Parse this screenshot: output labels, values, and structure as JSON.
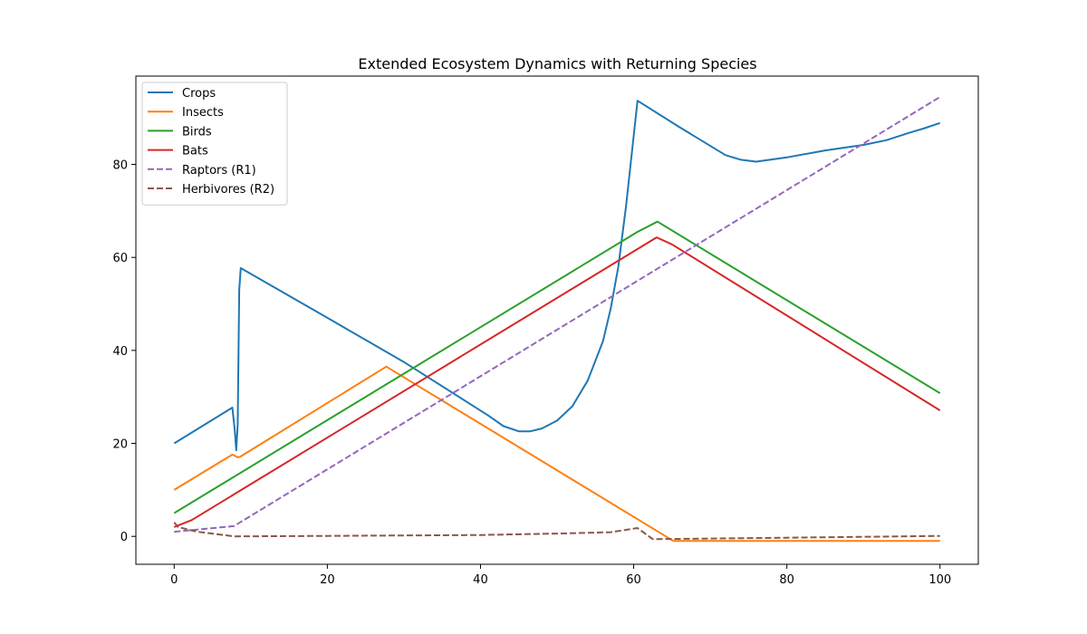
{
  "chart_data": {
    "type": "line",
    "title": "Extended Ecosystem Dynamics with Returning Species",
    "xlabel": "",
    "ylabel": "",
    "xlim": [
      -5,
      105
    ],
    "ylim": [
      -6,
      99
    ],
    "xticks": [
      0,
      20,
      40,
      60,
      80,
      100
    ],
    "yticks": [
      0,
      20,
      40,
      60,
      80
    ],
    "grid": false,
    "legend_position": "top-left",
    "series": [
      {
        "name": "Crops",
        "color": "#1f77b4",
        "dash": "solid",
        "points": [
          [
            0,
            20
          ],
          [
            7.6,
            27.7
          ],
          [
            7.9,
            23
          ],
          [
            8.1,
            18.5
          ],
          [
            8.3,
            24
          ],
          [
            8.5,
            53
          ],
          [
            8.7,
            57.7
          ],
          [
            20,
            47
          ],
          [
            30,
            37.5
          ],
          [
            41,
            26
          ],
          [
            43,
            23.7
          ],
          [
            45,
            22.6
          ],
          [
            46.5,
            22.6
          ],
          [
            48,
            23.2
          ],
          [
            50,
            24.9
          ],
          [
            52,
            28
          ],
          [
            54,
            33.5
          ],
          [
            56,
            42
          ],
          [
            57,
            49
          ],
          [
            58,
            58
          ],
          [
            59,
            71
          ],
          [
            60,
            86
          ],
          [
            60.5,
            93.7
          ],
          [
            66,
            88
          ],
          [
            72,
            82
          ],
          [
            74,
            81
          ],
          [
            76,
            80.6
          ],
          [
            80,
            81.5
          ],
          [
            85,
            83
          ],
          [
            90,
            84.2
          ],
          [
            93,
            85.2
          ],
          [
            96,
            86.8
          ],
          [
            98,
            87.8
          ],
          [
            100,
            88.9
          ]
        ]
      },
      {
        "name": "Insects",
        "color": "#ff7f0e",
        "dash": "solid",
        "points": [
          [
            0,
            10
          ],
          [
            7.6,
            17.6
          ],
          [
            8.3,
            17
          ],
          [
            8.6,
            17.1
          ],
          [
            27.7,
            36.5
          ],
          [
            65.2,
            -1
          ],
          [
            100,
            -1
          ]
        ]
      },
      {
        "name": "Birds",
        "color": "#2ca02c",
        "dash": "solid",
        "points": [
          [
            0,
            5
          ],
          [
            60.5,
            65.5
          ],
          [
            63.1,
            67.7
          ],
          [
            100,
            30.8
          ]
        ]
      },
      {
        "name": "Bats",
        "color": "#d62728",
        "dash": "solid",
        "points": [
          [
            0,
            2
          ],
          [
            2.3,
            3.5
          ],
          [
            63,
            64.3
          ],
          [
            65,
            62.8
          ],
          [
            100,
            27.1
          ]
        ]
      },
      {
        "name": "Raptors (R1)",
        "color": "#9467bd",
        "dash": "dashed",
        "points": [
          [
            0,
            1
          ],
          [
            7.8,
            2.2
          ],
          [
            100,
            94.5
          ]
        ]
      },
      {
        "name": "Herbivores (R2)",
        "color": "#8c564b",
        "dash": "dashed",
        "points": [
          [
            0,
            3
          ],
          [
            0.5,
            2
          ],
          [
            3,
            1
          ],
          [
            7.8,
            0
          ],
          [
            20,
            0.1
          ],
          [
            40,
            0.3
          ],
          [
            50,
            0.6
          ],
          [
            57,
            0.9
          ],
          [
            60.5,
            1.8
          ],
          [
            62.5,
            -0.6
          ],
          [
            80,
            -0.3
          ],
          [
            100,
            0.1
          ]
        ]
      }
    ]
  }
}
